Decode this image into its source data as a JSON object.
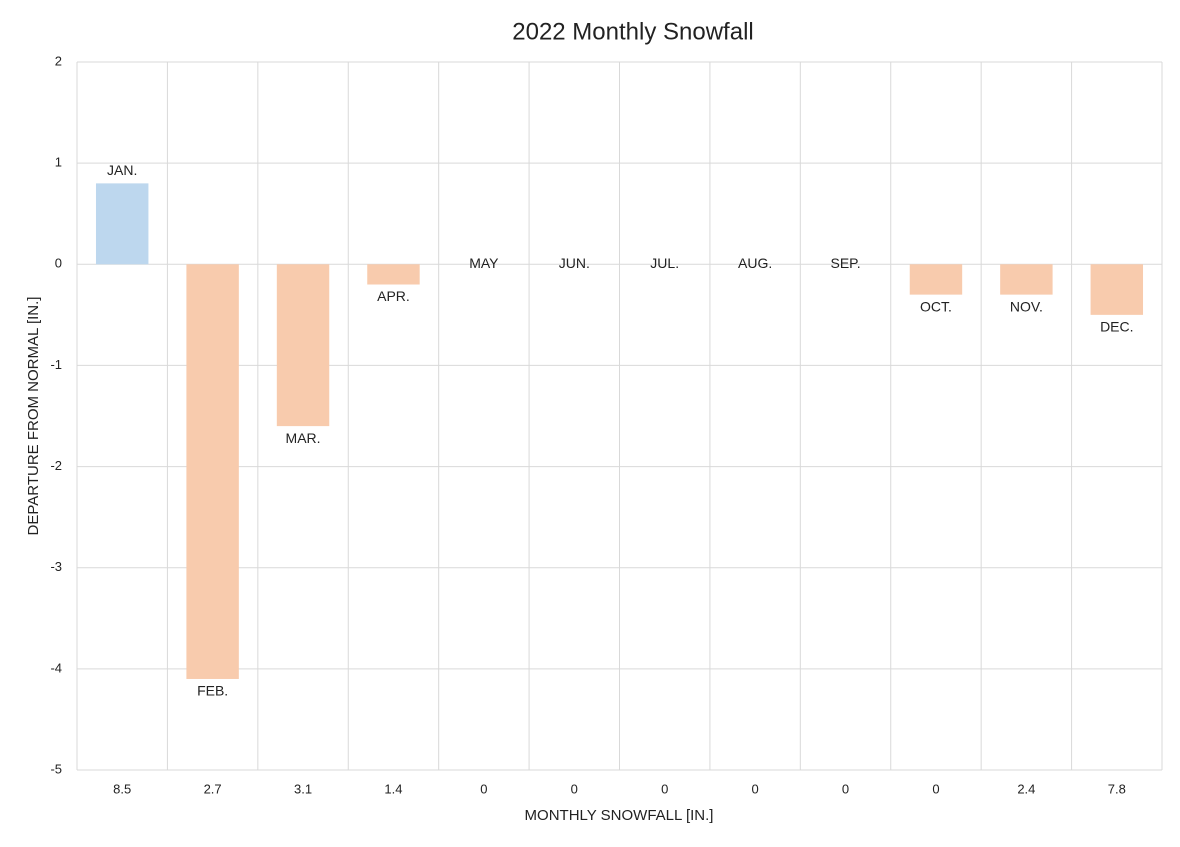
{
  "chart_data": {
    "type": "bar",
    "title": "2022 Monthly Snowfall",
    "x_label": "MONTHLY SNOWFALL [IN.]",
    "y_label": "DEPARTURE FROM NORMAL [IN.]",
    "categories": [
      "8.5",
      "2.7",
      "3.1",
      "1.4",
      "0",
      "0",
      "0",
      "0",
      "0",
      "0",
      "2.4",
      "7.8"
    ],
    "labels": [
      "JAN.",
      "FEB.",
      "MAR.",
      "APR.",
      "MAY",
      "JUN.",
      "JUL.",
      "AUG.",
      "SEP.",
      "OCT.",
      "NOV.",
      "DEC."
    ],
    "values": [
      0.8,
      -4.1,
      -1.6,
      -0.2,
      0,
      0,
      0,
      0,
      0,
      -0.3,
      -0.3,
      -0.5
    ],
    "positive_color": "#bdd7ee",
    "negative_color": "#f8cbad",
    "ylim": [
      -5,
      2
    ],
    "yticks": [
      -5,
      -4,
      -3,
      -2,
      -1,
      0,
      1,
      2
    ],
    "grid": true
  }
}
